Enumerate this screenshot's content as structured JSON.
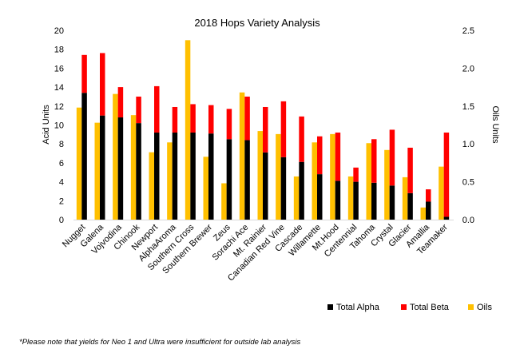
{
  "chart_data": {
    "type": "bar",
    "title": "2018 Hops Variety Analysis",
    "ylabel": "Acid Units",
    "y2label": "Oils Units",
    "ylim": [
      0,
      20
    ],
    "y_ticks": [
      0,
      2,
      4,
      6,
      8,
      10,
      12,
      14,
      16,
      18,
      20
    ],
    "y2lim": [
      0,
      2.5
    ],
    "y2_ticks": [
      "0.0",
      "0.5",
      "1.0",
      "1.5",
      "2.0",
      "2.5"
    ],
    "grid": false,
    "legend_position": "bottom-right",
    "categories": [
      "Nugget",
      "Galena",
      "Vojvodina",
      "Chinook",
      "Newport",
      "AlphaAroma",
      "Southern Cross",
      "Southern Brewer",
      "Zeus",
      "Sorachi Ace",
      "Mt. Rainier",
      "Canadian Red Vine",
      "Cascade",
      "Willamette",
      "Mt.Hood",
      "Centennial",
      "Tahoma",
      "Crystal",
      "Glacier",
      "Amallia",
      "Teamaker"
    ],
    "series": [
      {
        "name": "Oils",
        "axis": "secondary",
        "color": "#FFC000",
        "values": [
          1.48,
          1.28,
          1.66,
          1.38,
          0.89,
          1.02,
          2.37,
          0.83,
          0.48,
          1.68,
          1.17,
          1.13,
          0.57,
          1.02,
          1.13,
          0.57,
          1.01,
          0.92,
          0.56,
          0.16,
          0.7
        ]
      },
      {
        "name": "Total Alpha",
        "axis": "primary",
        "color": "#000000",
        "values": [
          13.4,
          11.0,
          10.8,
          10.2,
          9.2,
          9.2,
          9.2,
          9.1,
          8.5,
          8.4,
          7.1,
          6.6,
          6.1,
          4.8,
          4.1,
          4.0,
          3.9,
          3.6,
          2.8,
          1.9,
          0.3
        ]
      },
      {
        "name": "Total Beta",
        "axis": "primary",
        "color": "#FF0000",
        "values": [
          4.0,
          6.6,
          3.2,
          2.8,
          4.9,
          2.7,
          3.0,
          3.0,
          3.2,
          4.6,
          4.8,
          5.9,
          4.8,
          4.0,
          5.1,
          1.5,
          4.6,
          5.9,
          4.8,
          1.3,
          8.9
        ]
      }
    ],
    "footnote": "*Please note that yields for Neo 1 and Ultra were insufficient for outside lab analysis"
  }
}
